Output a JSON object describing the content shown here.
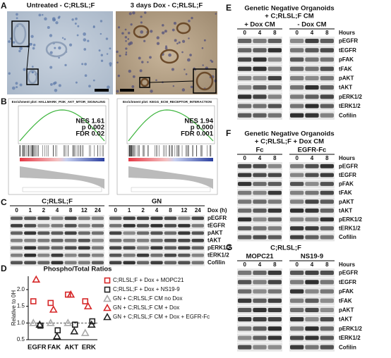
{
  "panel_a": {
    "letter": "A",
    "left_title": "Untreated - C;RLSL;F",
    "right_title": "3 days Dox - C;RLSL;F"
  },
  "panel_b": {
    "letter": "B",
    "plots": [
      {
        "header": "Enrichment plot: HALLMARK_PI3K_AKT_MTOR_SIGNALING",
        "nes": "NES 1.61",
        "p": "p 0.002",
        "fdr": "FDR 0.02"
      },
      {
        "header": "Enrichment plot: KEGG_ECM_RECEPTOR_INTERACTION",
        "nes": "NES 1.94",
        "p": "p 0.000",
        "fdr": "FDR 0.001"
      }
    ]
  },
  "panel_c": {
    "letter": "C",
    "groups": [
      "C;RLSL;F",
      "GN"
    ],
    "lanes_label": "Dox (h)",
    "lanes": [
      "0",
      "1",
      "2",
      "4",
      "8",
      "12",
      "24"
    ],
    "proteins": [
      "pEGFR",
      "tEGFR",
      "pAKT",
      "tAKT",
      "pERK1/2",
      "tERK1/2",
      "Cofilin"
    ]
  },
  "chart_data": {
    "type": "scatter",
    "letter": "D",
    "title": "Phospho/Total Ratios",
    "y_label": "Relative to 0H",
    "categories": [
      "EGFR",
      "FAK",
      "AKT",
      "ERK"
    ],
    "ylim": [
      0.5,
      2.4
    ],
    "yticks": [
      {
        "value": 0.5,
        "label": "0.5"
      },
      {
        "value": 1,
        "label": "1.0"
      },
      {
        "value": 1.5,
        "label": "1.5"
      },
      {
        "value": 2,
        "label": "2.0"
      }
    ],
    "reference_line": 1,
    "series": [
      {
        "name": "C;RLSL;F + Dox + MOPC21",
        "color": "#d62728",
        "marker": "square",
        "values": [
          1.65,
          1.6,
          1.85,
          1.65
        ]
      },
      {
        "name": "C;RLSL;F + Dox + NS19-9",
        "color": "#222222",
        "marker": "square",
        "values": [
          0.92,
          0.78,
          0.95,
          1.05
        ]
      },
      {
        "name": "GN + C;RLSL;F CM no Dox",
        "color": "#aaaaaa",
        "marker": "triangle",
        "values": [
          1.0,
          1.0,
          1.0,
          0.7
        ]
      },
      {
        "name": "GN + C;RLSL;F CM + Dox",
        "color": "#d62728",
        "marker": "triangle",
        "values": [
          2.3,
          1.4,
          1.85,
          1.5
        ]
      },
      {
        "name": "GN + C;RLSL;F CM + Dox + EGFR-Fc",
        "color": "#222222",
        "marker": "triangle",
        "values": [
          0.95,
          0.6,
          0.75,
          0.95
        ]
      }
    ]
  },
  "panel_e": {
    "letter": "E",
    "title": [
      "Genetic Negative Organoids",
      "+ C;RLSL;F CM"
    ],
    "groups": [
      "+ Dox CM",
      "- Dox CM"
    ],
    "hours_label": "Hours",
    "hours": [
      "0",
      "4",
      "8"
    ],
    "proteins": [
      "pEGFR",
      "tEGFR",
      "pFAK",
      "tFAK",
      "pAKT",
      "tAKT",
      "pERK1/2",
      "tERK1/2",
      "Cofilin"
    ]
  },
  "panel_f": {
    "letter": "F",
    "title": [
      "Genetic Negative Organoids",
      "+ C;RLSL;F + Dox CM"
    ],
    "groups": [
      "Fc",
      "EGFR-Fc"
    ],
    "hours_label": "Hours",
    "hours": [
      "0",
      "4",
      "8"
    ],
    "proteins": [
      "pEGFR",
      "tEGFR",
      "pFAK",
      "tFAK",
      "pAKT",
      "tAKT",
      "pERK1/2",
      "tERK1/2",
      "Cofilin"
    ]
  },
  "panel_g": {
    "letter": "G",
    "title": [
      "C;RLSL;F"
    ],
    "groups": [
      "MOPC21",
      "NS19-9"
    ],
    "hours_label": "Hours",
    "hours": [
      "0",
      "4",
      "8"
    ],
    "proteins": [
      "pEGFR",
      "tEGFR",
      "pFAK",
      "tFAK",
      "pAKT",
      "tAKT",
      "pERK1/2",
      "tERK1/2",
      "Cofilin"
    ]
  }
}
